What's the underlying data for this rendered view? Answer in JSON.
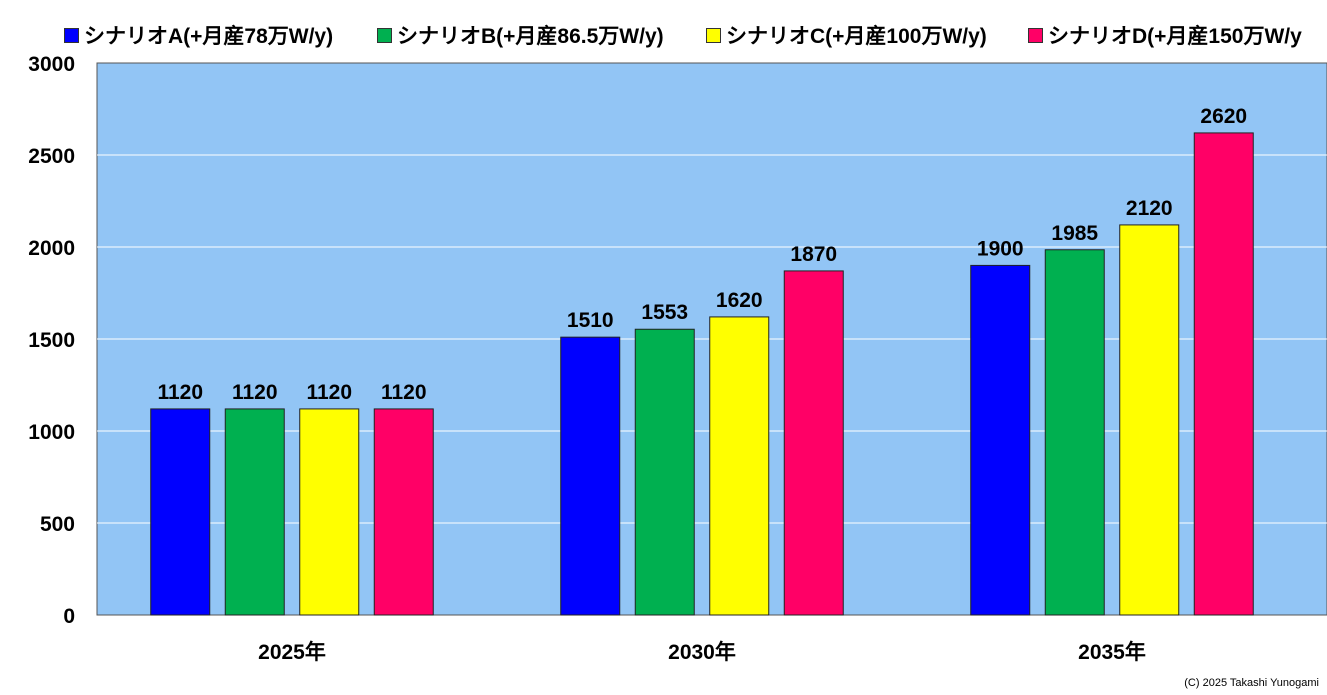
{
  "chart_data": {
    "type": "bar",
    "categories": [
      "2025年",
      "2030年",
      "2035年"
    ],
    "series": [
      {
        "name": "シナリオA(+月産78万W/y)",
        "color": "#0000ff",
        "values": [
          1120,
          1510,
          1900
        ]
      },
      {
        "name": "シナリオB(+月産86.5万W/y)",
        "color": "#00b050",
        "values": [
          1120,
          1553,
          1985
        ]
      },
      {
        "name": "シナリオC(+月産100万W/y)",
        "color": "#ffff00",
        "values": [
          1120,
          1620,
          2120
        ]
      },
      {
        "name": "シナリオD(+月産150万W/y",
        "color": "#ff0066",
        "values": [
          1120,
          1870,
          2620
        ]
      }
    ],
    "ylim": [
      0,
      3000
    ],
    "yticks": [
      0,
      500,
      1000,
      1500,
      2000,
      2500,
      3000
    ],
    "grid": true,
    "plot_background": "#92c5f5",
    "legend": "top"
  },
  "copyright": "(C) 2025 Takashi Yunogami"
}
